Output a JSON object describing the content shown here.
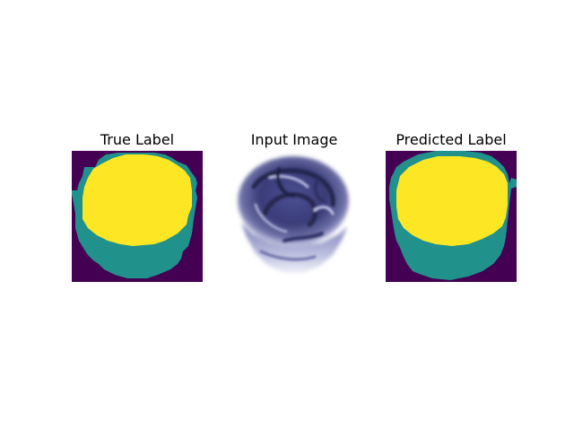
{
  "figure": {
    "panels": [
      {
        "title": "True Label",
        "content": "segmentation-mask"
      },
      {
        "title": "Input Image",
        "content": "photo"
      },
      {
        "title": "Predicted Label",
        "content": "segmentation-mask"
      }
    ],
    "colors": {
      "background_class": "#440154",
      "border_class": "#21918c",
      "object_class": "#fde725",
      "photo_dark": "#3a3c78",
      "photo_light": "#e9ebf7"
    }
  }
}
